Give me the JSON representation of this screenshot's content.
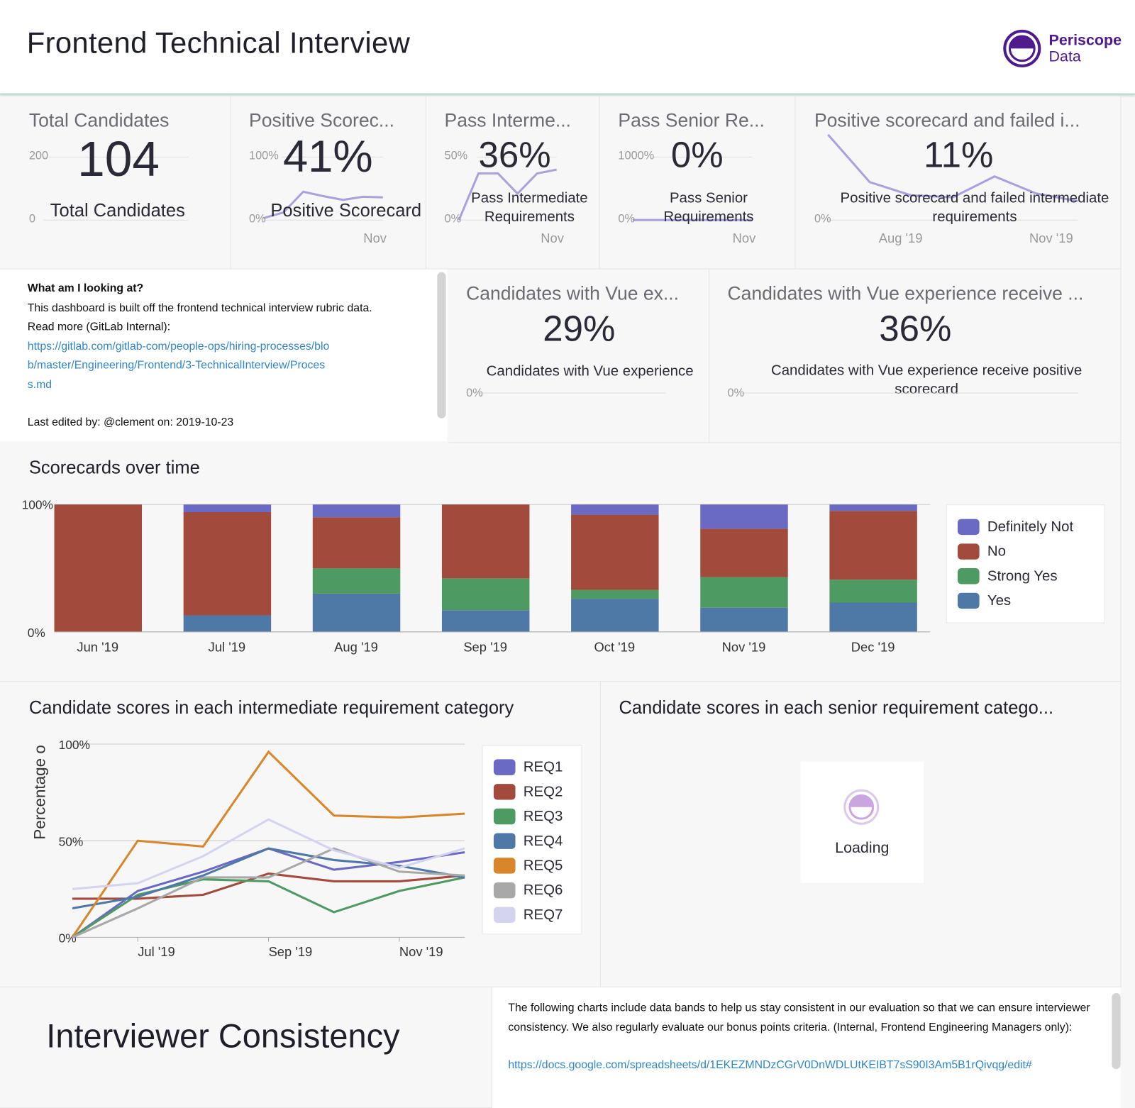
{
  "header": {
    "title": "Frontend Technical Interview",
    "logo": {
      "line1": "Periscope",
      "line2": "Data",
      "color": "#4e1a8e"
    }
  },
  "kpis": [
    {
      "title": "Total Candidates",
      "value": "104",
      "label": "Total Candidates",
      "axis_top": "200",
      "axis_bottom": "0",
      "x_ticks": []
    },
    {
      "title": "Positive Scorec...",
      "value": "41%",
      "label": "Positive Scorecard",
      "axis_top": "100%",
      "axis_bottom": "0%",
      "x_ticks": [
        "Nov"
      ],
      "sparkline": [
        3,
        12,
        45,
        38,
        32,
        37,
        36
      ],
      "ymax": 100
    },
    {
      "title": "Pass Interme...",
      "value": "36%",
      "label": "Pass Intermediate Requirements",
      "axis_top": "50%",
      "axis_bottom": "0%",
      "x_ticks": [
        "Nov"
      ],
      "sparkline": [
        0,
        37,
        37,
        21,
        37,
        40
      ],
      "ymax": 50
    },
    {
      "title": "Pass Senior Re...",
      "value": "0%",
      "label": "Pass Senior Requirements",
      "axis_top": "1000%",
      "axis_bottom": "0%",
      "x_ticks": [
        "Nov"
      ],
      "sparkline": [
        0,
        0,
        0,
        0,
        0,
        0
      ],
      "ymax": 1000
    },
    {
      "title": "Positive scorecard and failed i...",
      "value": "11%",
      "label": "Positive scorecard and failed intermediate requirements",
      "axis_top": "",
      "axis_bottom": "0%",
      "x_ticks": [
        "Aug '19",
        "Nov '19"
      ],
      "sparkline": [
        45,
        20,
        13,
        12,
        23,
        14,
        10
      ],
      "ymax": 50
    }
  ],
  "note": {
    "heading": "What am I looking at?",
    "body": "This dashboard is built off the frontend technical interview rubric data.",
    "read_more": "Read more (GitLab Internal):",
    "link": "https://gitlab.com/gitlab-com/people-ops/hiring-processes/blob/master/Engineering/Frontend/3-TechnicalInterview/Process.md",
    "edited": "Last edited by: @clement on: 2019-10-23"
  },
  "vue_kpis": [
    {
      "title": "Candidates with Vue ex...",
      "value": "29%",
      "label": "Candidates with Vue experience",
      "axis_bottom": "0%"
    },
    {
      "title": "Candidates with Vue experience receive ...",
      "value": "36%",
      "label": "Candidates with Vue experience receive positive scorecard",
      "axis_bottom": "0%"
    }
  ],
  "chart_data": [
    {
      "type": "bar",
      "stacked": true,
      "title": "Scorecards over time",
      "categories": [
        "Jun '19",
        "Jul '19",
        "Aug '19",
        "Sep '19",
        "Oct '19",
        "Nov '19",
        "Dec '19"
      ],
      "ylim": [
        0,
        100
      ],
      "y_ticks": [
        "0%",
        "100%"
      ],
      "legend": "right",
      "series": [
        {
          "name": "Yes",
          "color": "#4e79a7",
          "values": [
            0,
            13,
            30,
            17,
            26,
            19,
            23
          ]
        },
        {
          "name": "Strong Yes",
          "color": "#4e9a63",
          "values": [
            0,
            0,
            20,
            25,
            7,
            24,
            18
          ]
        },
        {
          "name": "No",
          "color": "#a24b3c",
          "values": [
            100,
            81,
            40,
            58,
            59,
            38,
            54
          ]
        },
        {
          "name": "Definitely Not",
          "color": "#6a6ac4",
          "values": [
            0,
            6,
            10,
            0,
            8,
            19,
            5
          ]
        }
      ],
      "legend_order": [
        "Definitely Not",
        "No",
        "Strong Yes",
        "Yes"
      ]
    },
    {
      "type": "line",
      "title": "Candidate scores in each intermediate requirement category",
      "ylabel": "Percentage o",
      "ylim": [
        0,
        100
      ],
      "y_ticks": [
        "0%",
        "50%",
        "100%"
      ],
      "x": [
        "Jun '19",
        "Jul '19",
        "Aug '19",
        "Sep '19",
        "Oct '19",
        "Nov '19",
        "Dec '19"
      ],
      "x_ticks": [
        "Jul '19",
        "Sep '19",
        "Nov '19"
      ],
      "legend": "right",
      "series": [
        {
          "name": "REQ1",
          "color": "#6a6ac4",
          "values": [
            0,
            24,
            34,
            46,
            35,
            39,
            44
          ]
        },
        {
          "name": "REQ2",
          "color": "#a24b3c",
          "values": [
            20,
            20,
            22,
            33,
            29,
            29,
            32
          ]
        },
        {
          "name": "REQ3",
          "color": "#4e9a63",
          "values": [
            0,
            22,
            30,
            29,
            13,
            24,
            31
          ]
        },
        {
          "name": "REQ4",
          "color": "#4e79a7",
          "values": [
            15,
            21,
            32,
            46,
            40,
            37,
            31
          ]
        },
        {
          "name": "REQ5",
          "color": "#d9862b",
          "values": [
            0,
            50,
            47,
            96,
            63,
            62,
            64
          ]
        },
        {
          "name": "REQ6",
          "color": "#a8a8a8",
          "values": [
            0,
            15,
            31,
            31,
            46,
            34,
            32
          ]
        },
        {
          "name": "REQ7",
          "color": "#d4d4ee",
          "values": [
            25,
            28,
            42,
            61,
            45,
            36,
            46
          ]
        }
      ]
    }
  ],
  "senior_panel": {
    "title": "Candidate scores in each senior requirement catego...",
    "loading": "Loading"
  },
  "consistency": {
    "title": "Interviewer Consistency",
    "body": "The following charts include data bands to help us stay consistent in our evaluation so that we can ensure interviewer consistency. We also regularly evaluate our bonus points criteria. (Internal, Frontend Engineering Managers only):",
    "link": "https://docs.google.com/spreadsheets/d/1EKEZMNDzCGrV0DnWDLUtKEIBT7sS90I3Am5B1rQivqg/edit#"
  },
  "colors": {
    "sparkline": "#a9a2de",
    "link": "#2f86c9",
    "header_border": "#b9d8d0"
  }
}
